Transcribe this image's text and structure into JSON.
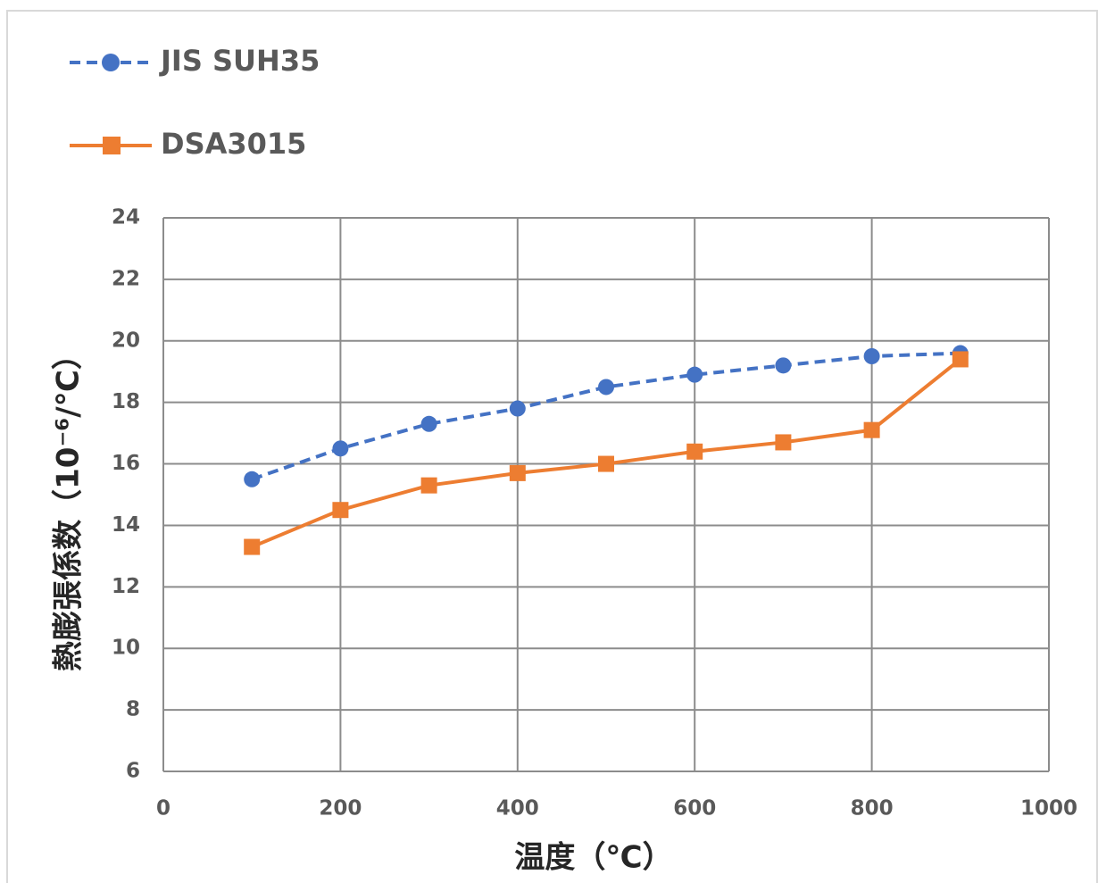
{
  "chart_data": {
    "type": "line",
    "x": [
      100,
      200,
      300,
      400,
      500,
      600,
      700,
      800,
      900
    ],
    "series": [
      {
        "name": "JIS SUH35",
        "color": "#4472c4",
        "dash": true,
        "marker": "circle",
        "values": [
          15.5,
          16.5,
          17.3,
          17.8,
          18.5,
          18.9,
          19.2,
          19.5,
          19.6
        ]
      },
      {
        "name": "DSA3015",
        "color": "#ed7d31",
        "dash": false,
        "marker": "square",
        "values": [
          13.3,
          14.5,
          15.3,
          15.7,
          16.0,
          16.4,
          16.7,
          17.1,
          19.4
        ]
      }
    ],
    "xlabel": "温度（℃）",
    "ylabel": "熱膨張係数（10⁻⁶/℃）",
    "xlim": [
      0,
      1000
    ],
    "xticks": [
      0,
      200,
      400,
      600,
      800,
      1000
    ],
    "ylim": [
      6,
      24
    ],
    "yticks": [
      6,
      8,
      10,
      12,
      14,
      16,
      18,
      20,
      22,
      24
    ],
    "grid": true
  }
}
